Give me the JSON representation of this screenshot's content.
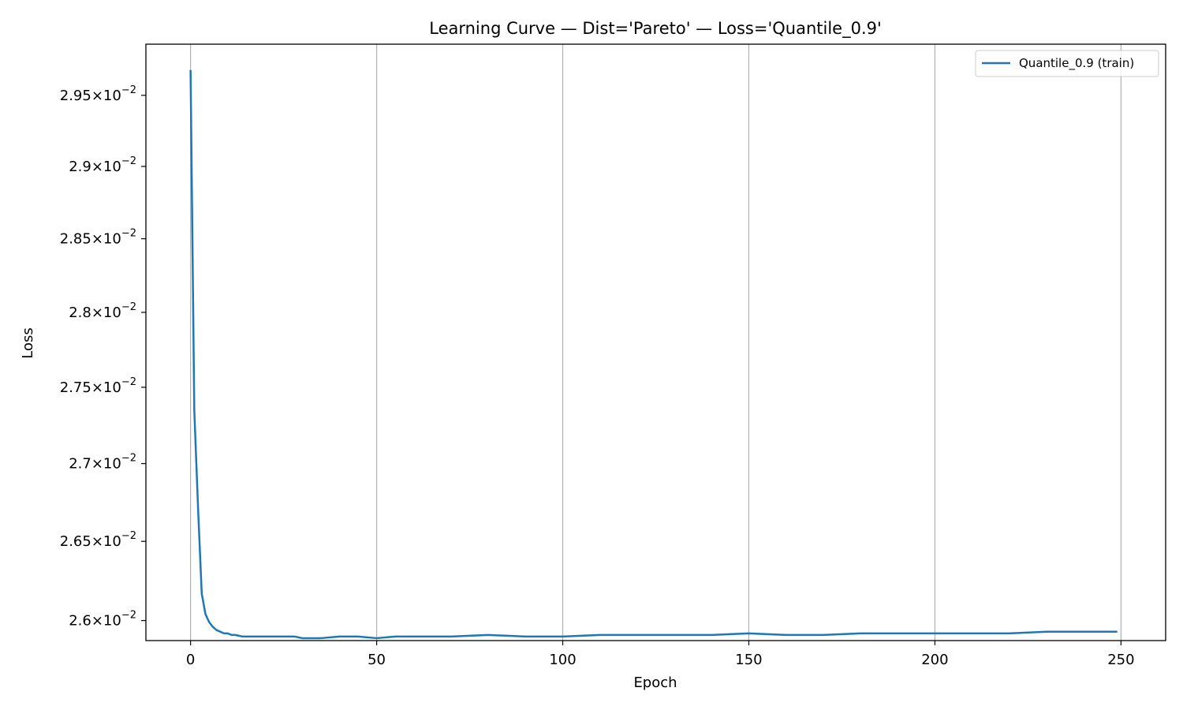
{
  "chart_data": {
    "type": "line",
    "title": "Learning Curve — Dist='Pareto' — Loss='Quantile_0.9'",
    "xlabel": "Epoch",
    "ylabel": "Loss",
    "xlim": [
      -12,
      262
    ],
    "ylim": [
      0.025875,
      0.029865
    ],
    "y_scale": "log",
    "grid": "vertical",
    "legend_position": "upper right",
    "x_ticks": [
      0,
      50,
      100,
      150,
      200,
      250
    ],
    "x_tick_labels": [
      "0",
      "50",
      "100",
      "150",
      "200",
      "250"
    ],
    "y_ticks": [
      {
        "value": 0.0295,
        "mantissa": "2.95",
        "exponent": "−2"
      },
      {
        "value": 0.029,
        "mantissa": "2.9",
        "exponent": "−2"
      },
      {
        "value": 0.0285,
        "mantissa": "2.85",
        "exponent": "−2"
      },
      {
        "value": 0.028,
        "mantissa": "2.8",
        "exponent": "−2"
      },
      {
        "value": 0.0275,
        "mantissa": "2.75",
        "exponent": "−2"
      },
      {
        "value": 0.027,
        "mantissa": "2.7",
        "exponent": "−2"
      },
      {
        "value": 0.0265,
        "mantissa": "2.65",
        "exponent": "−2"
      },
      {
        "value": 0.026,
        "mantissa": "2.6",
        "exponent": "−2"
      }
    ],
    "series": [
      {
        "name": "Quantile_0.9 (train)",
        "color": "#1f77b4",
        "x": [
          0,
          1,
          2,
          3,
          4,
          5,
          6,
          7,
          8,
          9,
          10,
          11,
          12,
          14,
          16,
          18,
          20,
          22,
          25,
          28,
          30,
          35,
          40,
          45,
          50,
          55,
          60,
          70,
          80,
          90,
          100,
          110,
          120,
          130,
          140,
          150,
          160,
          170,
          180,
          190,
          200,
          210,
          220,
          230,
          235,
          240,
          245,
          249
        ],
        "values": [
          0.02968,
          0.02735,
          0.02672,
          0.02617,
          0.02604,
          0.02599,
          0.02596,
          0.02594,
          0.02593,
          0.02592,
          0.02592,
          0.02591,
          0.02591,
          0.0259,
          0.0259,
          0.0259,
          0.0259,
          0.0259,
          0.0259,
          0.0259,
          0.02589,
          0.02589,
          0.0259,
          0.0259,
          0.02589,
          0.0259,
          0.0259,
          0.0259,
          0.02591,
          0.0259,
          0.0259,
          0.02591,
          0.02591,
          0.02591,
          0.02591,
          0.02592,
          0.02591,
          0.02591,
          0.02592,
          0.02592,
          0.02592,
          0.02592,
          0.02592,
          0.02593,
          0.02593,
          0.02593,
          0.02593,
          0.02593
        ]
      }
    ]
  }
}
